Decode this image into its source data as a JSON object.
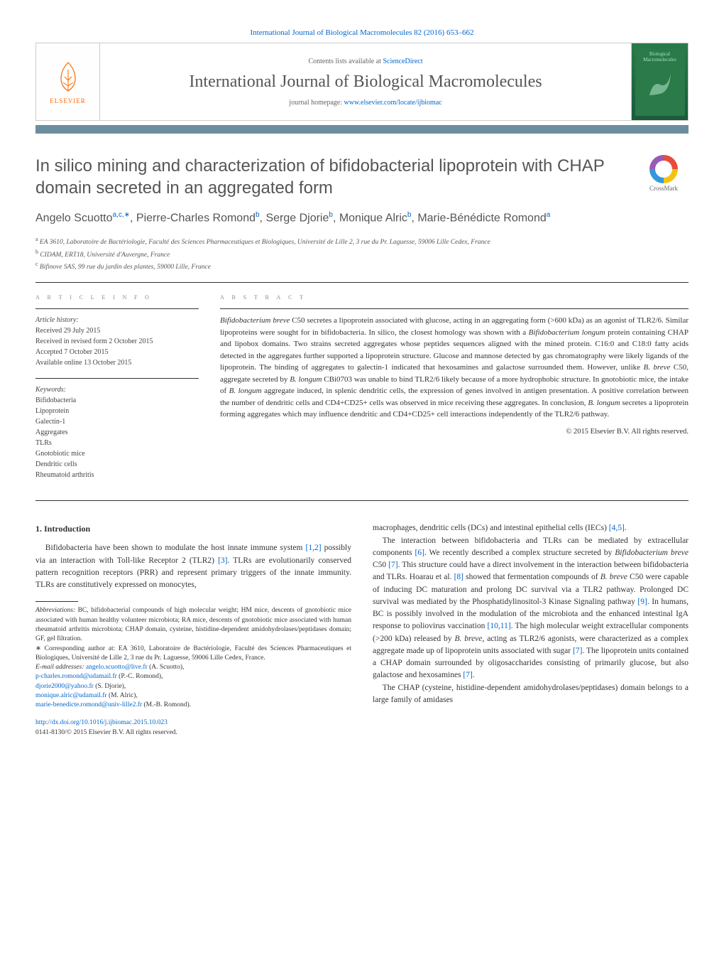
{
  "header": {
    "citation": "International Journal of Biological Macromolecules 82 (2016) 653–662",
    "contents_prefix": "Contents lists available at ",
    "contents_link": "ScienceDirect",
    "journal_title": "International Journal of Biological Macromolecules",
    "homepage_prefix": "journal homepage: ",
    "homepage_link": "www.elsevier.com/locate/ijbiomac",
    "publisher": "ELSEVIER",
    "cover_text_top": "Biological",
    "cover_text_bottom": "Macromolecules",
    "crossmark": "CrossMark"
  },
  "article": {
    "title": "In silico mining and characterization of bifidobacterial lipoprotein with CHAP domain secreted in an aggregated form",
    "authors_html": "Angelo Scuotto<sup>a,c,∗</sup>, Pierre-Charles Romond<sup>b</sup>, Serge Djorie<sup>b</sup>, Monique Alric<sup>b</sup>, Marie-Bénédicte Romond<sup>a</sup>",
    "affiliations": {
      "a": "EA 3610, Laboratoire de Bactériologie, Faculté des Sciences Pharmaceutiques et Biologiques, Université de Lille 2, 3 rue du Pr. Laguesse, 59006 Lille Cedex, France",
      "b": "CIDAM, ERT18, Université d'Auvergne, France",
      "c": "Bifinove SAS, 99 rue du jardin des plantes, 59000 Lille, France"
    }
  },
  "info": {
    "label": "a r t i c l e   i n f o",
    "history_head": "Article history:",
    "received": "Received 29 July 2015",
    "revised": "Received in revised form 2 October 2015",
    "accepted": "Accepted 7 October 2015",
    "online": "Available online 13 October 2015",
    "keywords_head": "Keywords:",
    "keywords": [
      "Bifidobacteria",
      "Lipoprotein",
      "Galectin-1",
      "Aggregates",
      "TLRs",
      "Gnotobiotic mice",
      "Dendritic cells",
      "Rheumatoid arthritis"
    ]
  },
  "abstract": {
    "label": "a b s t r a c t",
    "text": "Bifidobacterium breve C50 secretes a lipoprotein associated with glucose, acting in an aggregating form (>600 kDa) as an agonist of TLR2/6. Similar lipoproteins were sought for in bifidobacteria. In silico, the closest homology was shown with a Bifidobacterium longum protein containing CHAP and lipobox domains. Two strains secreted aggregates whose peptides sequences aligned with the mined protein. C16:0 and C18:0 fatty acids detected in the aggregates further supported a lipoprotein structure. Glucose and mannose detected by gas chromatography were likely ligands of the lipoprotein. The binding of aggregates to galectin-1 indicated that hexosamines and galactose surrounded them. However, unlike B. breve C50, aggregate secreted by B. longum CBi0703 was unable to bind TLR2/6 likely because of a more hydrophobic structure. In gnotobiotic mice, the intake of B. longum aggregate induced, in splenic dendritic cells, the expression of genes involved in antigen presentation. A positive correlation between the number of dendritic cells and CD4+CD25+ cells was observed in mice receiving these aggregates. In conclusion, B. longum secretes a lipoprotein forming aggregates which may influence dendritic and CD4+CD25+ cell interactions independently of the TLR2/6 pathway.",
    "copyright": "© 2015 Elsevier B.V. All rights reserved."
  },
  "body": {
    "intro_head": "1. Introduction",
    "p1": "Bifidobacteria have been shown to modulate the host innate immune system [1,2] possibly via an interaction with Toll-like Receptor 2 (TLR2) [3]. TLRs are evolutionarily conserved pattern recognition receptors (PRR) and represent primary triggers of the innate immunity. TLRs are constitutively expressed on monocytes,",
    "p2": "macrophages, dendritic cells (DCs) and intestinal epithelial cells (IECs) [4,5].",
    "p3": "The interaction between bifidobacteria and TLRs can be mediated by extracellular components [6]. We recently described a complex structure secreted by Bifidobacterium breve C50 [7]. This structure could have a direct involvement in the interaction between bifidobacteria and TLRs. Hoarau et al. [8] showed that fermentation compounds of B. breve C50 were capable of inducing DC maturation and prolong DC survival via a TLR2 pathway. Prolonged DC survival was mediated by the Phosphatidylinositol-3 Kinase Signaling pathway [9]. In humans, BC is possibly involved in the modulation of the microbiota and the enhanced intestinal IgA response to poliovirus vaccination [10,11]. The high molecular weight extracellular components (>200 kDa) released by B. breve, acting as TLR2/6 agonists, were characterized as a complex aggregate made up of lipoprotein units associated with sugar [7]. The lipoprotein units contained a CHAP domain surrounded by oligosaccharides consisting of primarily glucose, but also galactose and hexosamines [7].",
    "p4": "The CHAP (cysteine, histidine-dependent amidohydrolases/peptidases) domain belongs to a large family of amidases"
  },
  "footnotes": {
    "abbrev_head": "Abbreviations:",
    "abbrev": " BC, bifidobacterial compounds of high molecular weight; HM mice, descents of gnotobiotic mice associated with human healthy volunteer microbiota; RA mice, descents of gnotobiotic mice associated with human rheumatoid arthritis microbiota; CHAP domain, cysteine, histidine-dependent amidohydrolases/peptidases domain; GF, gel filtration.",
    "corresp": "∗ Corresponding author at: EA 3610, Laboratoire de Bactériologie, Faculté des Sciences Pharmaceutiques et Biologiques, Université de Lille 2, 3 rue du Pr. Laguesse, 59006 Lille Cedex, France.",
    "email_head": "E-mail addresses:",
    "emails": [
      {
        "addr": "angelo.scuotto@live.fr",
        "who": " (A. Scuotto),"
      },
      {
        "addr": "p-charles.romond@udamail.fr",
        "who": " (P.-C. Romond), "
      },
      {
        "addr": "djorie2000@yahoo.fr",
        "who": " (S. Djorie),"
      },
      {
        "addr": "monique.alric@udamail.fr",
        "who": " (M. Alric), "
      },
      {
        "addr": "marie-benedicte.romond@univ-lille2.fr",
        "who": " (M.-B. Romond)."
      }
    ],
    "doi": "http://dx.doi.org/10.1016/j.ijbiomac.2015.10.023",
    "issn_line": "0141-8130/© 2015 Elsevier B.V. All rights reserved."
  },
  "refs": {
    "r12": "[1,2]",
    "r3": "[3]",
    "r45": "[4,5]",
    "r6": "[6]",
    "r7": "[7]",
    "r8": "[8]",
    "r9": "[9]",
    "r1011": "[10,11]"
  },
  "colors": {
    "link": "#0066cc",
    "bar": "#6b8e9f",
    "text": "#333333",
    "gray": "#888888",
    "orange": "#ff6600",
    "cover": "#2a7a4a"
  }
}
